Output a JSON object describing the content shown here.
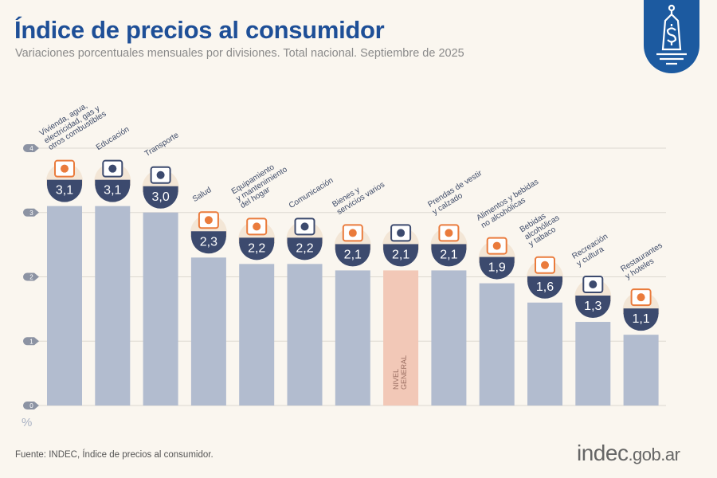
{
  "header": {
    "title": "Índice de precios al consumidor",
    "subtitle": "Variaciones porcentuales mensuales por divisiones. Total nacional. Septiembre de 2025"
  },
  "footer": {
    "source": "Fuente: INDEC, Índice de precios al consumidor.",
    "brand_main": "indec",
    "brand_suffix": ".gob.ar"
  },
  "logo": {
    "icon": "price-tag-dollar-icon",
    "color": "#1c5aa0"
  },
  "chart_data": {
    "type": "bar",
    "title": "Índice de precios al consumidor",
    "subtitle": "Variaciones porcentuales mensuales por divisiones. Total nacional. Septiembre de 2025",
    "ylabel": "%",
    "ylim": [
      0,
      4
    ],
    "yticks": [
      "0",
      "1",
      "2",
      "3",
      "4"
    ],
    "grid": true,
    "categories": [
      "Vivienda, agua,\nelectricidad, gas y\notros combustibles",
      "Educación",
      "Transporte",
      "Salud",
      "Equipamiento\ny mantenimiento\ndel hogar",
      "Comunicación",
      "Bienes y\nservicios varios",
      "NIVEL\nGENERAL",
      "Prendas de vestir\ny calzado",
      "Alimentos y bebidas\nno alcohólicas",
      "Bebidas\nalcohólicas\ny tabaco",
      "Recreación\ny cultura",
      "Restaurantes\ny hoteles"
    ],
    "values": [
      3.1,
      3.1,
      3.0,
      2.3,
      2.2,
      2.2,
      2.1,
      2.1,
      2.1,
      1.9,
      1.6,
      1.3,
      1.1
    ],
    "value_labels": [
      "3,1",
      "3,1",
      "3,0",
      "2,3",
      "2,2",
      "2,2",
      "2,1",
      "2,1",
      "2,1",
      "1,9",
      "1,6",
      "1,3",
      "1,1"
    ],
    "icons": [
      "house-utilities-icon",
      "education-icon",
      "transport-icon",
      "health-icon",
      "household-equipment-icon",
      "communication-phone-icon",
      "personal-care-icon",
      "shopping-basket-icon",
      "clothing-icon",
      "food-icon",
      "alcohol-tobacco-icon",
      "recreation-icon",
      "restaurant-hotel-icon"
    ],
    "highlight_index": 7,
    "colors": {
      "bar": "#b2bccf",
      "highlight": "#f2c8b7",
      "bubble": "#3c4a6e",
      "accent": "#ea7b3c",
      "grid": "#dcd8d0",
      "tick_marker": "#8c93a3"
    }
  }
}
